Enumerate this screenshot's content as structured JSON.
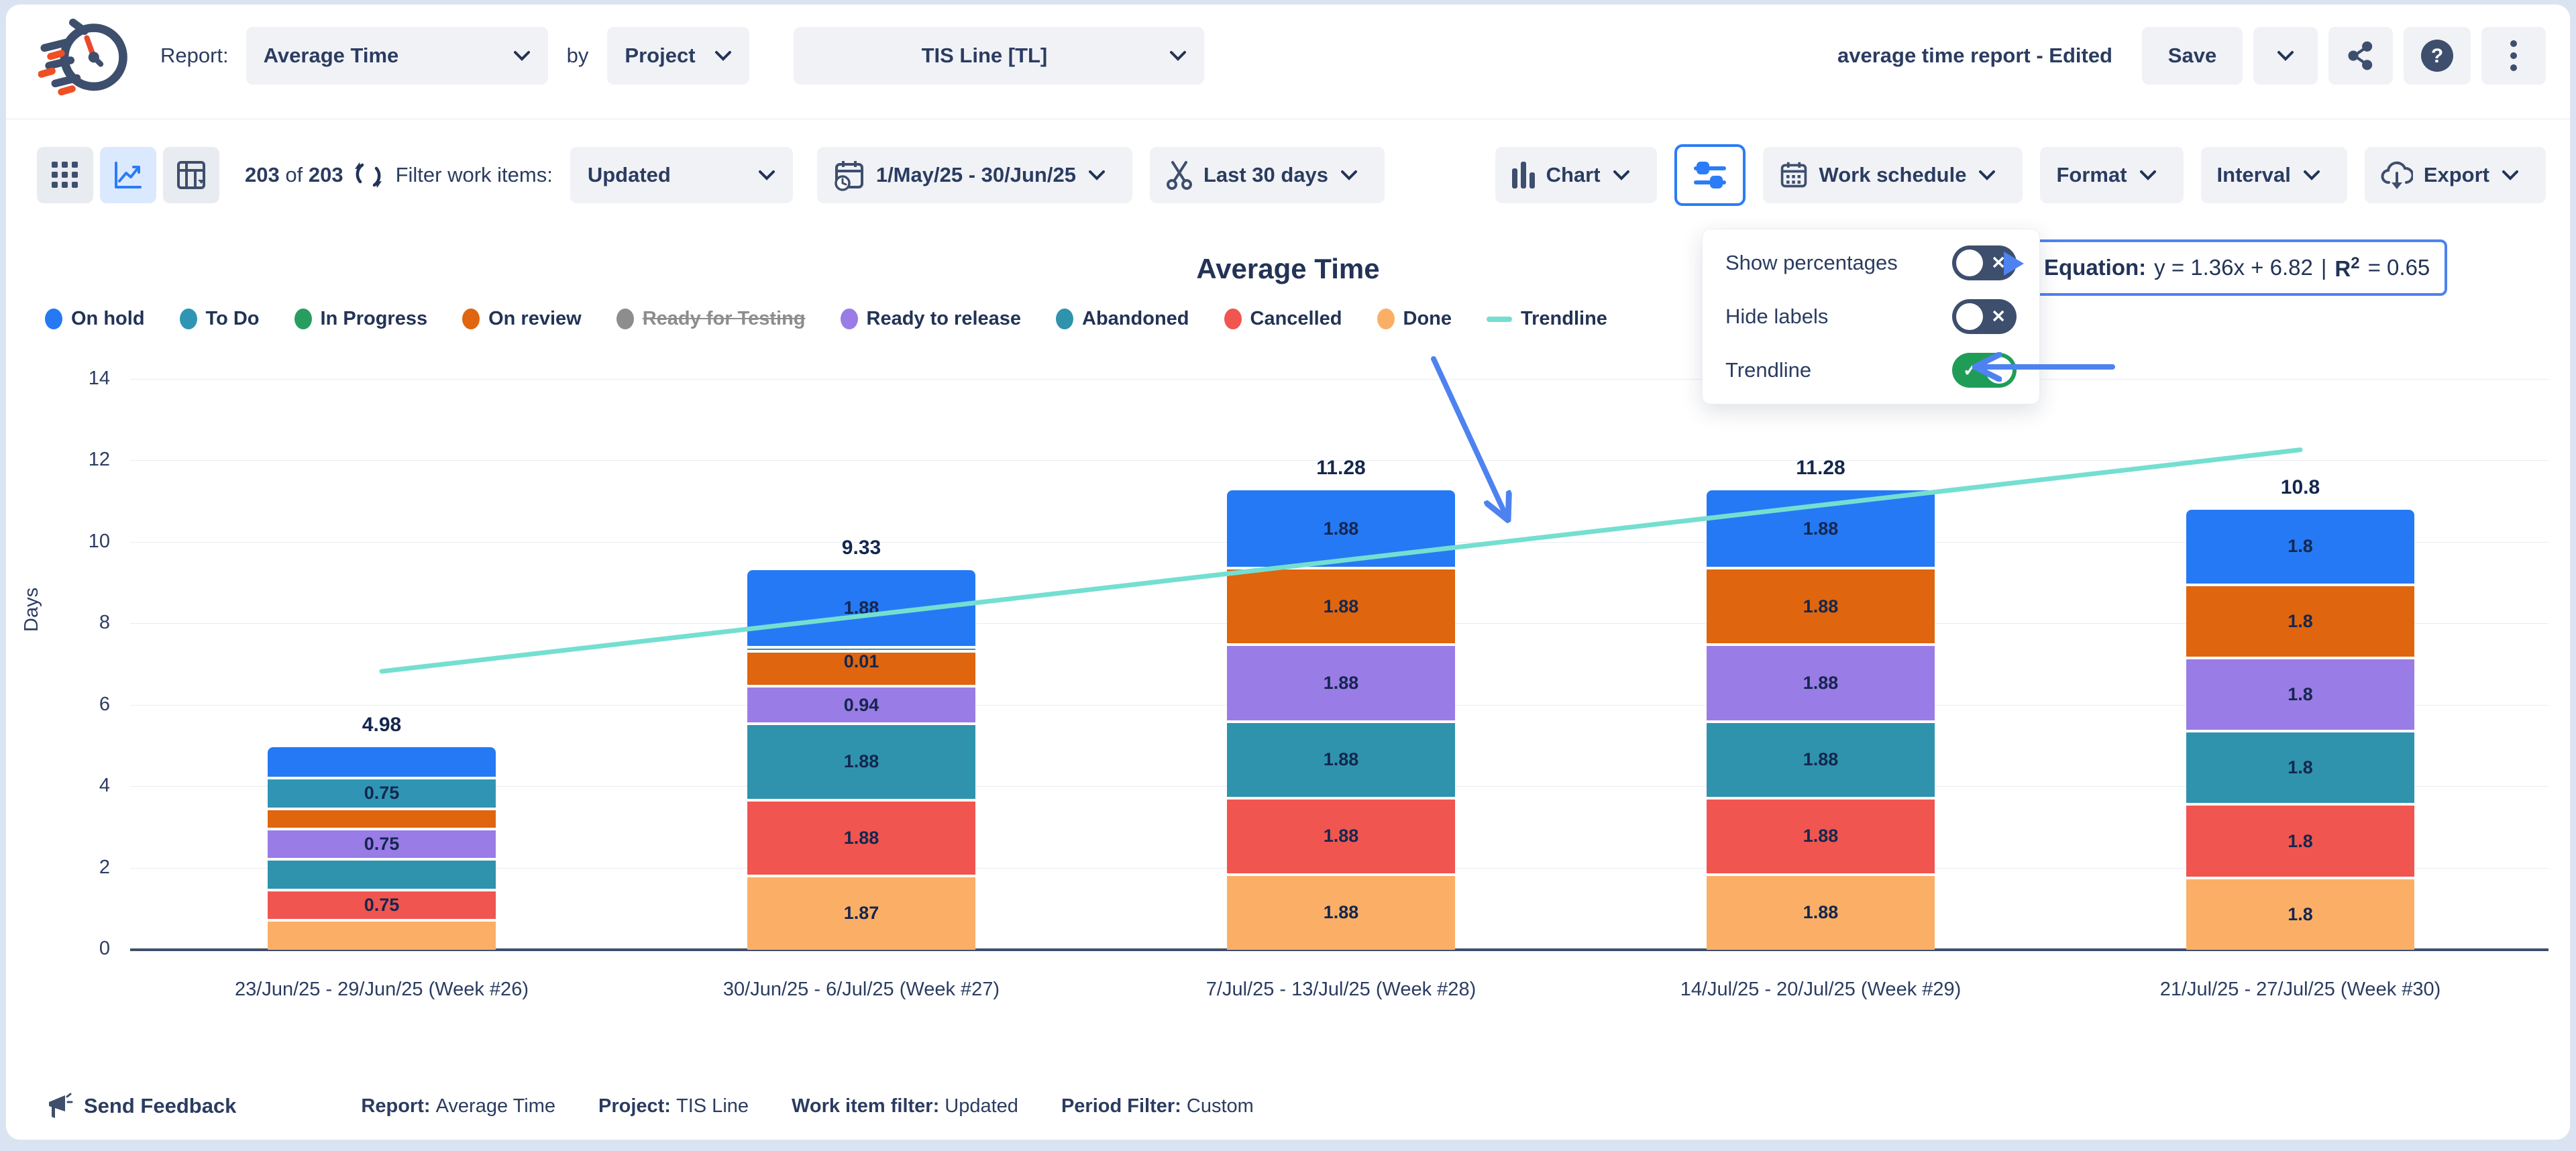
{
  "header": {
    "report_label": "Report:",
    "report_type": "Average Time",
    "by_label": "by",
    "group_by": "Project",
    "project": "TIS Line [TL]",
    "doc_title": "average time report - Edited",
    "save_label": "Save"
  },
  "toolbar": {
    "count_current": "203",
    "count_of": "of",
    "count_total": "203",
    "filter_label": "Filter work items:",
    "work_item_filter": "Updated",
    "date_range": "1/May/25 - 30/Jun/25",
    "quick_range": "Last 30 days",
    "chart_label": "Chart",
    "work_schedule_label": "Work schedule",
    "format_label": "Format",
    "interval_label": "Interval",
    "export_label": "Export"
  },
  "settings_panel": {
    "items": [
      {
        "label": "Show percentages",
        "on": false
      },
      {
        "label": "Hide labels",
        "on": false
      },
      {
        "label": "Trendline",
        "on": true
      }
    ],
    "toggle_on_color": "#1f9d57",
    "toggle_off_color": "#3e4e6d"
  },
  "equation": {
    "label": "Equation:",
    "formula": "y = 1.36x + 6.82",
    "separator": "|",
    "r_label": "R",
    "r_exp": "2",
    "r_value": "= 0.65"
  },
  "legend": [
    {
      "label": "On hold",
      "color": "#2579f4",
      "disabled": false
    },
    {
      "label": "To Do",
      "color": "#3095b4",
      "disabled": false
    },
    {
      "label": "In Progress",
      "color": "#279e5f",
      "disabled": false
    },
    {
      "label": "On review",
      "color": "#df650e",
      "disabled": false
    },
    {
      "label": "Ready for Testing",
      "color": "#8d8d8d",
      "disabled": true
    },
    {
      "label": "Ready to release",
      "color": "#997ce6",
      "disabled": false
    },
    {
      "label": "Abandoned",
      "color": "#2f93ad",
      "disabled": false
    },
    {
      "label": "Cancelled",
      "color": "#f0554f",
      "disabled": false
    },
    {
      "label": "Done",
      "color": "#fbaf66",
      "disabled": false
    },
    {
      "label": "Trendline",
      "color": "#74dfd0",
      "disabled": false,
      "line": true
    }
  ],
  "chart_data": {
    "type": "bar",
    "stacked": true,
    "title": "Average Time",
    "ylabel": "Days",
    "ylim": [
      0,
      14
    ],
    "yticks": [
      0,
      2,
      4,
      6,
      8,
      10,
      12,
      14
    ],
    "grid": true,
    "categories": [
      "23/Jun/25 - 29/Jun/25 (Week #26)",
      "30/Jun/25 - 6/Jul/25 (Week #27)",
      "7/Jul/25 - 13/Jul/25 (Week #28)",
      "14/Jul/25 - 20/Jul/25 (Week #29)",
      "21/Jul/25 - 27/Jul/25 (Week #30)"
    ],
    "totals": [
      "4.98",
      "9.33",
      "11.28",
      "11.28",
      "10.8"
    ],
    "series": [
      {
        "name": "On hold",
        "color": "#2579f4",
        "values": [
          0.73,
          1.88,
          1.88,
          1.88,
          1.8
        ],
        "labels": [
          "",
          "1.88",
          "1.88",
          "1.88",
          "1.8"
        ]
      },
      {
        "name": "To Do",
        "color": "#3095b4",
        "values": [
          0.75,
          0.01,
          0,
          0,
          0
        ],
        "labels": [
          "0.75",
          "0.01",
          "",
          "",
          ""
        ]
      },
      {
        "name": "On review",
        "color": "#df650e",
        "values": [
          0.5,
          0.87,
          1.88,
          1.88,
          1.8
        ],
        "labels": [
          "",
          "",
          "1.88",
          "1.88",
          "1.8"
        ]
      },
      {
        "name": "Ready to release",
        "color": "#997ce6",
        "values": [
          0.75,
          0.94,
          1.88,
          1.88,
          1.8
        ],
        "labels": [
          "0.75",
          "0.94",
          "1.88",
          "1.88",
          "1.8"
        ]
      },
      {
        "name": "Abandoned",
        "color": "#2f93ad",
        "values": [
          0.75,
          1.88,
          1.88,
          1.88,
          1.8
        ],
        "labels": [
          "",
          "1.88",
          "1.88",
          "1.88",
          "1.8"
        ]
      },
      {
        "name": "Cancelled",
        "color": "#f0554f",
        "values": [
          0.75,
          1.88,
          1.88,
          1.88,
          1.8
        ],
        "labels": [
          "0.75",
          "1.88",
          "1.88",
          "1.88",
          "1.8"
        ]
      },
      {
        "name": "Done",
        "color": "#fbaf66",
        "values": [
          0.75,
          1.87,
          1.88,
          1.88,
          1.8
        ],
        "labels": [
          "",
          "1.87",
          "1.88",
          "1.88",
          "1.8"
        ]
      }
    ],
    "trendline": {
      "name": "Trendline",
      "color": "#74dfd0",
      "equation": "y = 1.36x + 6.82",
      "r2": "0.65",
      "endpoints_days": [
        6.82,
        12.26
      ]
    }
  },
  "footer": {
    "send_feedback": "Send Feedback",
    "meta": [
      {
        "label": "Report:",
        "value": "Average Time"
      },
      {
        "label": "Project:",
        "value": "TIS Line"
      },
      {
        "label": "Work item filter:",
        "value": "Updated"
      },
      {
        "label": "Period Filter:",
        "value": "Custom"
      }
    ]
  },
  "colors": {
    "accent_blue": "#2b7cf6",
    "annotation_blue": "#4d82f0",
    "navy": "#2b3c61",
    "trendline": "#74dfd0"
  }
}
